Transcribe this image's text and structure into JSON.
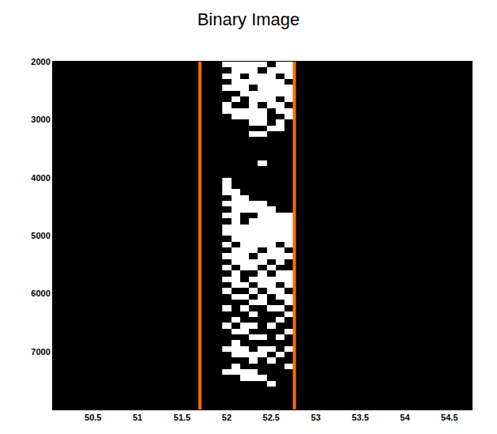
{
  "chart_data": {
    "type": "heatmap",
    "title": "Binary Image",
    "xlim": [
      50.05,
      54.75
    ],
    "xticks": [
      50.5,
      51,
      51.5,
      52,
      52.5,
      53,
      53.5,
      54,
      54.5
    ],
    "ylim": [
      8000,
      2000
    ],
    "yticks": [
      2000,
      3000,
      4000,
      5000,
      6000,
      7000
    ],
    "colors": [
      "#000000",
      "#ffffff"
    ],
    "zlim": [
      0,
      1
    ],
    "lines": [
      {
        "x": 51.7,
        "color": "#ff6a00"
      },
      {
        "x": 52.76,
        "color": "#ff6a00"
      }
    ],
    "x": [
      52.0,
      52.1,
      52.2,
      52.3,
      52.4,
      52.5,
      52.6,
      52.7
    ],
    "y": [
      2050,
      2150,
      2250,
      2350,
      2450,
      2550,
      2650,
      2750,
      2850,
      2950,
      3050,
      3150,
      3250,
      3350,
      3450,
      3550,
      3650,
      3750,
      3850,
      3950,
      4050,
      4150,
      4250,
      4350,
      4450,
      4550,
      4650,
      4750,
      4850,
      4950,
      5050,
      5150,
      5250,
      5350,
      5450,
      5550,
      5650,
      5750,
      5850,
      5950,
      6050,
      6150,
      6250,
      6350,
      6450,
      6550,
      6650,
      6750,
      6850,
      6950,
      7050,
      7150,
      7250,
      7350,
      7450,
      7550
    ],
    "z": [
      [
        1,
        1,
        1,
        1,
        1,
        0,
        1,
        1
      ],
      [
        0,
        1,
        1,
        1,
        0,
        1,
        1,
        1
      ],
      [
        1,
        1,
        0,
        1,
        1,
        1,
        0,
        1
      ],
      [
        0,
        1,
        1,
        1,
        1,
        1,
        1,
        0
      ],
      [
        1,
        1,
        1,
        0,
        1,
        1,
        1,
        1
      ],
      [
        0,
        0,
        1,
        1,
        1,
        1,
        1,
        1
      ],
      [
        0,
        1,
        0,
        1,
        1,
        1,
        0,
        1
      ],
      [
        1,
        0,
        0,
        1,
        0,
        1,
        1,
        0
      ],
      [
        1,
        1,
        1,
        1,
        1,
        0,
        1,
        1
      ],
      [
        0,
        1,
        1,
        1,
        1,
        0,
        0,
        1
      ],
      [
        0,
        0,
        0,
        1,
        1,
        0,
        1,
        0
      ],
      [
        0,
        0,
        0,
        0,
        0,
        1,
        1,
        0
      ],
      [
        0,
        0,
        0,
        1,
        1,
        0,
        0,
        0
      ],
      [
        0,
        0,
        0,
        0,
        0,
        0,
        0,
        0
      ],
      [
        0,
        0,
        0,
        0,
        0,
        0,
        0,
        0
      ],
      [
        0,
        0,
        0,
        0,
        0,
        0,
        0,
        0
      ],
      [
        0,
        0,
        0,
        0,
        0,
        0,
        0,
        0
      ],
      [
        0,
        0,
        0,
        0,
        1,
        0,
        0,
        0
      ],
      [
        0,
        0,
        0,
        0,
        0,
        0,
        0,
        0
      ],
      [
        0,
        0,
        0,
        0,
        0,
        0,
        0,
        0
      ],
      [
        1,
        0,
        0,
        0,
        0,
        0,
        0,
        0
      ],
      [
        1,
        0,
        0,
        0,
        0,
        0,
        0,
        0
      ],
      [
        1,
        1,
        0,
        0,
        0,
        0,
        0,
        0
      ],
      [
        0,
        1,
        1,
        0,
        0,
        0,
        0,
        0
      ],
      [
        1,
        1,
        1,
        1,
        1,
        0,
        0,
        0
      ],
      [
        0,
        1,
        1,
        1,
        1,
        1,
        0,
        0
      ],
      [
        1,
        1,
        0,
        0,
        1,
        1,
        1,
        1
      ],
      [
        0,
        1,
        0,
        1,
        1,
        1,
        1,
        1
      ],
      [
        1,
        1,
        1,
        1,
        1,
        1,
        1,
        1
      ],
      [
        1,
        1,
        1,
        1,
        1,
        1,
        1,
        1
      ],
      [
        0,
        1,
        1,
        1,
        1,
        1,
        1,
        1
      ],
      [
        1,
        0,
        1,
        1,
        1,
        1,
        0,
        1
      ],
      [
        0,
        1,
        1,
        1,
        0,
        1,
        1,
        0
      ],
      [
        1,
        1,
        1,
        0,
        1,
        1,
        1,
        1
      ],
      [
        0,
        1,
        1,
        1,
        1,
        0,
        1,
        0
      ],
      [
        1,
        0,
        1,
        1,
        0,
        1,
        0,
        0
      ],
      [
        0,
        1,
        0,
        0,
        1,
        0,
        1,
        1
      ],
      [
        1,
        1,
        0,
        1,
        1,
        1,
        1,
        1
      ],
      [
        0,
        1,
        1,
        0,
        1,
        1,
        0,
        1
      ],
      [
        1,
        0,
        0,
        1,
        0,
        1,
        1,
        0
      ],
      [
        0,
        1,
        1,
        0,
        1,
        0,
        1,
        1
      ],
      [
        0,
        0,
        0,
        1,
        1,
        0,
        0,
        1
      ],
      [
        1,
        0,
        1,
        0,
        0,
        1,
        1,
        0
      ],
      [
        0,
        0,
        0,
        1,
        0,
        0,
        0,
        1
      ],
      [
        0,
        1,
        0,
        0,
        0,
        0,
        1,
        0
      ],
      [
        1,
        0,
        1,
        1,
        0,
        1,
        0,
        0
      ],
      [
        0,
        1,
        1,
        0,
        0,
        0,
        0,
        1
      ],
      [
        0,
        0,
        0,
        1,
        1,
        0,
        1,
        0
      ],
      [
        0,
        1,
        0,
        0,
        0,
        0,
        0,
        0
      ],
      [
        1,
        1,
        1,
        0,
        1,
        1,
        0,
        1
      ],
      [
        0,
        1,
        1,
        1,
        1,
        0,
        1,
        0
      ],
      [
        0,
        0,
        0,
        1,
        0,
        1,
        0,
        0
      ],
      [
        0,
        1,
        0,
        0,
        0,
        0,
        0,
        1
      ],
      [
        1,
        1,
        1,
        1,
        0,
        0,
        0,
        0
      ],
      [
        0,
        0,
        1,
        1,
        1,
        0,
        0,
        0
      ],
      [
        0,
        0,
        0,
        0,
        0,
        1,
        0,
        0
      ]
    ]
  }
}
